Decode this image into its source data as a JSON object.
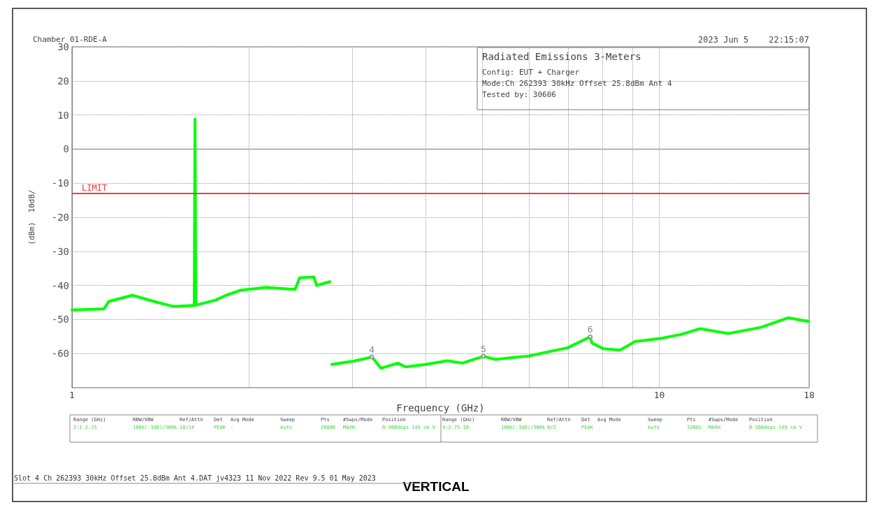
{
  "chart_data": {
    "type": "line",
    "title": "Radiated Emissions 3-Meters",
    "subtitle": "VERTICAL",
    "xlabel": "Frequency (GHz)",
    "ylabel": "(dBm)  10dB/",
    "log": "x",
    "grid": true,
    "marker": "none",
    "line_style": "solid",
    "xlim": [
      1,
      18
    ],
    "xticks": [
      1,
      {
        "value": 2,
        "label": null
      },
      {
        "value": 3,
        "label": null
      },
      {
        "value": 4,
        "label": null
      },
      {
        "value": 5,
        "label": null
      },
      {
        "value": 6,
        "label": null
      },
      {
        "value": 7,
        "label": null
      },
      {
        "value": 8,
        "label": null
      },
      {
        "value": 9,
        "label": null
      },
      10,
      18
    ],
    "ylim": [
      -70,
      30
    ],
    "yticks": [
      {
        "value": -70,
        "label": null
      },
      -60,
      -50,
      -40,
      -30,
      -20,
      -10,
      0,
      10,
      20,
      30
    ],
    "series": [
      {
        "color": "#00ff00",
        "x": [
          1.0,
          1.133,
          1.155,
          1.268,
          1.378,
          1.49,
          1.596,
          1.615,
          1.62,
          1.625,
          1.757,
          1.83,
          1.94,
          2.14,
          2.36,
          2.4,
          2.44,
          2.58,
          2.61,
          2.75
        ],
        "values": [
          -47.2,
          -46.9,
          -44.7,
          -42.9,
          -44.7,
          -46.2,
          -45.9,
          -45.9,
          8.8,
          -45.8,
          -44.3,
          -42.9,
          -41.4,
          -40.6,
          -41.1,
          -41.1,
          -37.8,
          -37.5,
          -40,
          -38.9
        ]
      },
      {
        "color": "#00ff00",
        "x": [
          2.77,
          3.04,
          3.24,
          3.36,
          3.59,
          3.7,
          4.0,
          4.36,
          4.62,
          5.02,
          5.26,
          6.0,
          6.98,
          7.63,
          7.68,
          8.04,
          8.58,
          9.08,
          10.1,
          10.88,
          11.73,
          13.13,
          14.9,
          16.6,
          17.95
        ],
        "values": [
          -63.2,
          -62.1,
          -61,
          -64.3,
          -62.8,
          -63.9,
          -63.2,
          -62.1,
          -62.8,
          -60.8,
          -61.7,
          -60.7,
          -58.3,
          -55.1,
          -56.9,
          -58.6,
          -59,
          -56.5,
          -55.5,
          -54.4,
          -52.7,
          -54.1,
          -52.3,
          -49.5,
          -50.6
        ]
      }
    ],
    "ref_lines": [
      {
        "axis": "y",
        "value": -13,
        "label": "LIMIT",
        "color": "#e8403c",
        "line_style": "solid"
      }
    ],
    "annotations": [
      "Chamber 01-RDE-A",
      "2023 Jun 5    22:15:07",
      "Config: EUT + Charger",
      "Mode:Ch 262393 30kHz Offset 25.8dBm Ant 4",
      "Tested by: 30606",
      "Range (GHz)",
      "RBW/VBW",
      "Ref/Attn",
      "Det",
      "Avg Mode",
      "Sweep",
      "Pts",
      "#Swps/Mode",
      "Position",
      "2:1-2.75",
      "100k(-3dB)/300k",
      "10/14",
      "PEAK",
      "-",
      "Auto",
      "20000",
      "MAXH",
      "0-360degs 149 cm V",
      "Range (GHz)",
      "RBW/VBW",
      "Ref/Attn",
      "Det",
      "Avg Mode",
      "Sweep",
      "Pts",
      "#Swps/Mode",
      "Position",
      "4:2.75-18",
      "100k(-3dB)/300k",
      "0/2",
      "PEAK",
      "-",
      "Auto",
      "32001",
      "MAXH",
      "0-360degs 149 cm V",
      "Slot 4 Ch 262393 30kHz Offset 25.8dBm Ant 4.DAT jv4323 11 Nov 2022 Rev 9.5 01 May 2023",
      {
        "text": "4",
        "x": 3.24,
        "y": -61
      },
      {
        "text": "5",
        "x": 5.02,
        "y": -60.8
      },
      {
        "text": "6",
        "x": 7.63,
        "y": -55.1
      }
    ]
  }
}
